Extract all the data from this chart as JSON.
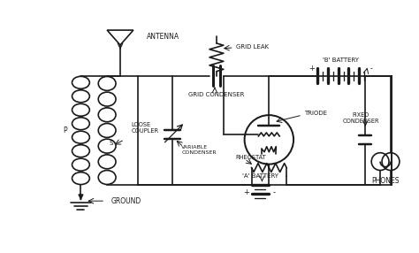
{
  "bg_color": "#ffffff",
  "line_color": "#1a1a1a",
  "text_color": "#1a1a1a",
  "labels": {
    "antenna": "ANTENNA",
    "ground": "GROUND",
    "loose_coupler": "LOOSE\nCOUPLER",
    "p": "P",
    "s": "S",
    "grid_condenser": "GRID CONDENSER",
    "grid_leak": "GRID LEAK",
    "variable_condenser": "VARIABLE\nCONDENSER",
    "triode": "TRIODE",
    "rheostat": "RHEOSTAT",
    "a_battery": "'A' BATTERY",
    "b_battery": "'B' BATTERY",
    "fixed_condenser": "FIXED\nCONDENSER",
    "phones": "PHONES"
  },
  "figsize": [
    4.74,
    2.86
  ],
  "dpi": 100
}
